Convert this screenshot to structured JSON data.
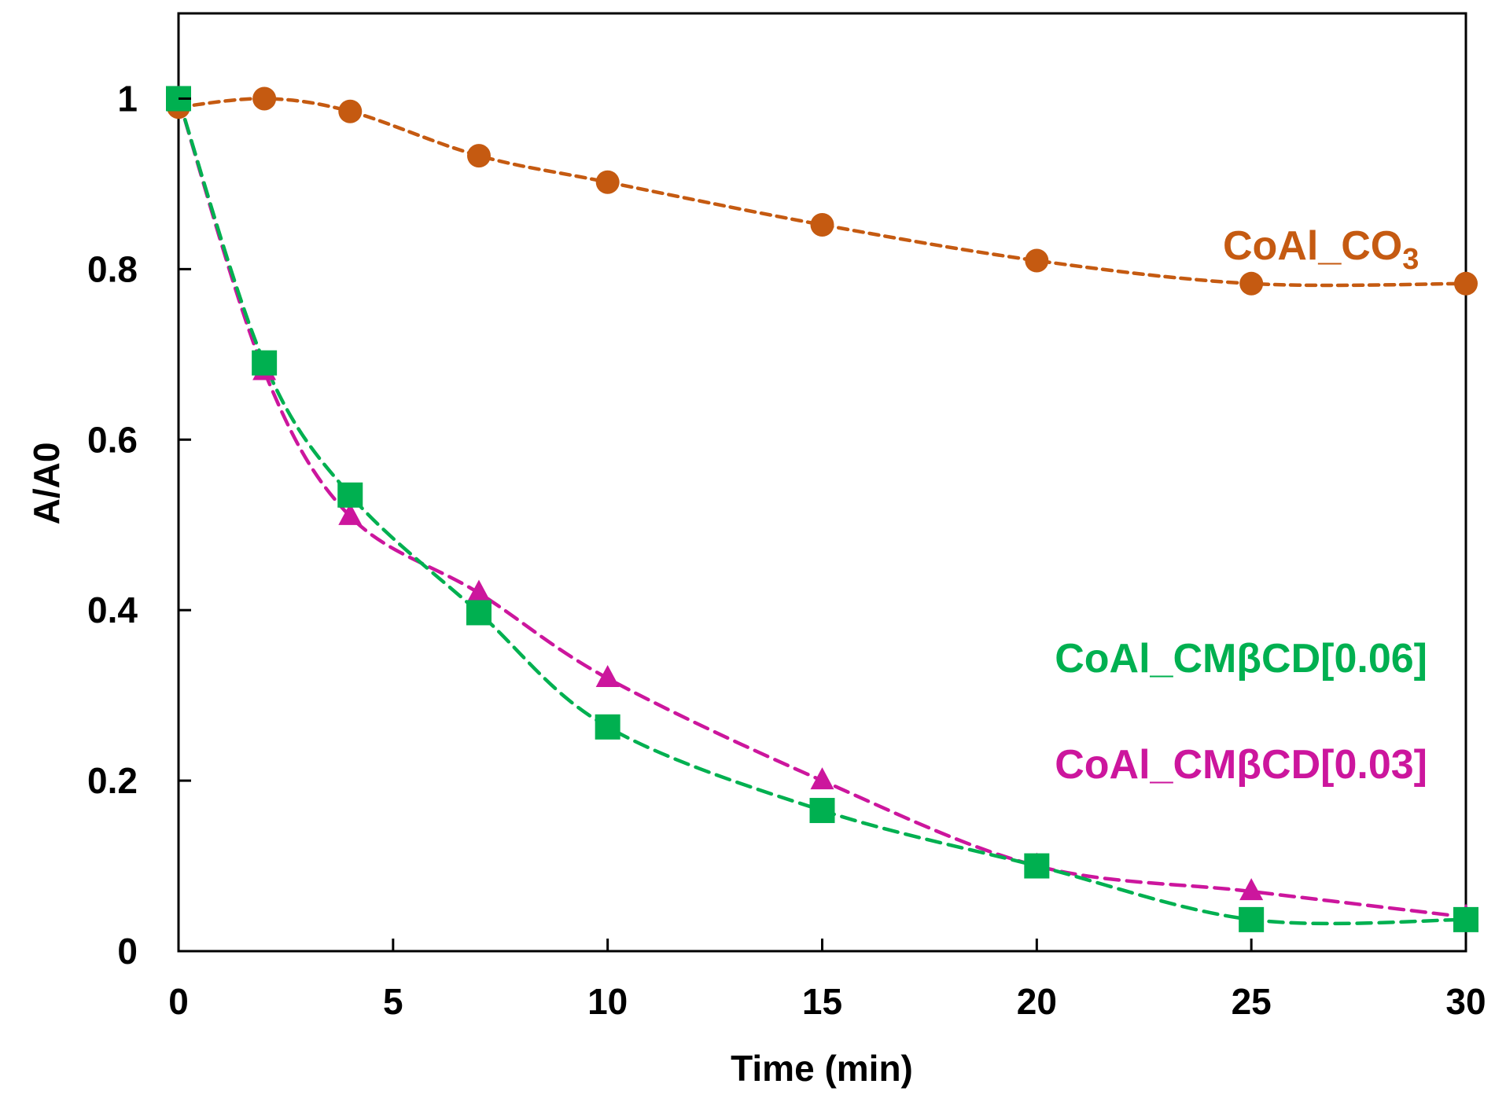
{
  "chart_data": {
    "type": "line",
    "title": "",
    "xlabel": "Time (min)",
    "ylabel": "A/A0",
    "xlim": [
      0,
      30
    ],
    "ylim": [
      0,
      1.1
    ],
    "x_ticks": [
      0,
      5,
      10,
      15,
      20,
      25,
      30
    ],
    "x_tick_labels": [
      "0",
      "5",
      "10",
      "15",
      "20",
      "25",
      "30"
    ],
    "y_ticks": [
      0,
      0.2,
      0.4,
      0.6,
      0.8,
      1
    ],
    "y_tick_labels": [
      "0",
      "0.2",
      "0.4",
      "0.6",
      "0.8",
      "1"
    ],
    "grid": false,
    "legend": "none",
    "series": [
      {
        "label_main": "CoAl_CO",
        "label_sub": "3",
        "color": "#c55a11",
        "marker": "circle",
        "line": "dashed",
        "x": [
          0,
          2,
          4,
          7,
          10,
          15,
          20,
          25,
          30
        ],
        "y": [
          0.99,
          1.0,
          0.985,
          0.933,
          0.902,
          0.852,
          0.81,
          0.783,
          0.783
        ]
      },
      {
        "label_main": "CoAl_CMβCD[0.03]",
        "label_sub": "",
        "color": "#cc169d",
        "marker": "triangle",
        "line": "dashed",
        "x": [
          0,
          2,
          4,
          7,
          10,
          15,
          20,
          25,
          30
        ],
        "y": [
          1.0,
          0.68,
          0.51,
          0.42,
          0.32,
          0.2,
          0.1,
          0.07,
          0.04
        ]
      },
      {
        "label_main": "CoAl_CMβCD[0.06]",
        "label_sub": "",
        "color": "#00b050",
        "marker": "square",
        "line": "dashed",
        "x": [
          0,
          2,
          4,
          7,
          10,
          15,
          20,
          25,
          30
        ],
        "y": [
          1.0,
          0.69,
          0.535,
          0.397,
          0.263,
          0.165,
          0.1,
          0.037,
          0.037
        ]
      }
    ]
  }
}
